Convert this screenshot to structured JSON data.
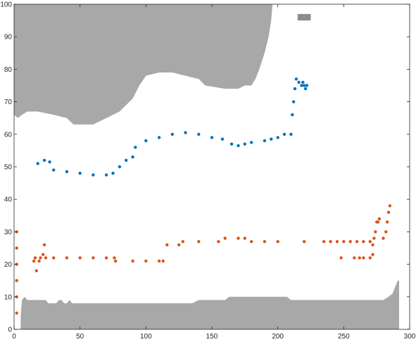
{
  "chart_data": {
    "type": "scatter",
    "title": "",
    "xlabel": "",
    "ylabel": "",
    "xlim": [
      0,
      300
    ],
    "ylim": [
      0,
      100
    ],
    "grid": false,
    "xticks": [
      0,
      50,
      100,
      150,
      200,
      250,
      300
    ],
    "yticks": [
      0,
      10,
      20,
      30,
      40,
      50,
      60,
      70,
      80,
      90,
      100
    ],
    "colors": {
      "background": "#ffffff",
      "obstacle": "#a8a8a8",
      "small_obstacle": "#8c8c8c",
      "series_blue": "#0072BD",
      "series_orange": "#D95319",
      "axis": "#262626"
    },
    "regions": {
      "top_obstacle": [
        [
          0,
          100
        ],
        [
          0,
          66
        ],
        [
          3,
          65
        ],
        [
          6,
          66
        ],
        [
          10,
          67
        ],
        [
          18,
          67
        ],
        [
          30,
          66
        ],
        [
          40,
          65
        ],
        [
          45,
          63
        ],
        [
          60,
          63
        ],
        [
          70,
          65
        ],
        [
          80,
          67
        ],
        [
          85,
          69
        ],
        [
          90,
          71
        ],
        [
          95,
          75
        ],
        [
          100,
          78
        ],
        [
          110,
          79
        ],
        [
          120,
          79
        ],
        [
          130,
          78
        ],
        [
          140,
          77
        ],
        [
          145,
          75
        ],
        [
          160,
          74
        ],
        [
          170,
          74
        ],
        [
          175,
          75
        ],
        [
          180,
          75
        ],
        [
          183,
          77
        ],
        [
          186,
          80
        ],
        [
          190,
          85
        ],
        [
          193,
          90
        ],
        [
          195,
          95
        ],
        [
          196,
          100
        ]
      ],
      "bottom_obstacle": [
        [
          5,
          0
        ],
        [
          5,
          4
        ],
        [
          6,
          9
        ],
        [
          8,
          10
        ],
        [
          10,
          9
        ],
        [
          24,
          9
        ],
        [
          26,
          8
        ],
        [
          32,
          8
        ],
        [
          34,
          9
        ],
        [
          36,
          9
        ],
        [
          38,
          8
        ],
        [
          40,
          8
        ],
        [
          42,
          9
        ],
        [
          44,
          8
        ],
        [
          135,
          8
        ],
        [
          140,
          9
        ],
        [
          160,
          9
        ],
        [
          163,
          10
        ],
        [
          207,
          10
        ],
        [
          210,
          9
        ],
        [
          280,
          9
        ],
        [
          284,
          10
        ],
        [
          287,
          11
        ],
        [
          289,
          13
        ],
        [
          291,
          15
        ],
        [
          292,
          15
        ],
        [
          292,
          0
        ]
      ],
      "small_obstacle": [
        [
          215,
          97
        ],
        [
          225,
          97
        ],
        [
          225,
          95
        ],
        [
          215,
          95
        ]
      ]
    },
    "series": [
      {
        "color": "#0072BD",
        "points": [
          [
            18,
            51
          ],
          [
            23,
            52
          ],
          [
            27,
            51.5
          ],
          [
            30,
            49
          ],
          [
            40,
            48.5
          ],
          [
            50,
            48
          ],
          [
            60,
            47.5
          ],
          [
            70,
            47.5
          ],
          [
            75,
            48
          ],
          [
            80,
            50
          ],
          [
            85,
            52
          ],
          [
            90,
            53
          ],
          [
            92,
            56
          ],
          [
            100,
            58
          ],
          [
            110,
            59
          ],
          [
            120,
            60
          ],
          [
            130,
            60.5
          ],
          [
            140,
            60
          ],
          [
            150,
            59
          ],
          [
            158,
            58.5
          ],
          [
            165,
            57
          ],
          [
            170,
            56.5
          ],
          [
            175,
            57
          ],
          [
            180,
            57.5
          ],
          [
            190,
            58
          ],
          [
            195,
            58.5
          ],
          [
            200,
            59
          ],
          [
            205,
            60
          ],
          [
            210,
            60
          ],
          [
            211,
            66
          ],
          [
            212,
            70
          ],
          [
            213,
            74
          ],
          [
            214,
            77
          ],
          [
            216,
            76
          ],
          [
            218,
            75
          ],
          [
            219,
            76
          ],
          [
            220,
            75
          ],
          [
            221,
            74
          ],
          [
            222,
            75
          ]
        ]
      },
      {
        "color": "#D95319",
        "points": [
          [
            2,
            5
          ],
          [
            2,
            10
          ],
          [
            2,
            15
          ],
          [
            2,
            20
          ],
          [
            2,
            25
          ],
          [
            2,
            30
          ],
          [
            15,
            21
          ],
          [
            16,
            22
          ],
          [
            17,
            18
          ],
          [
            19,
            21
          ],
          [
            20,
            22
          ],
          [
            22,
            23
          ],
          [
            23,
            26
          ],
          [
            24,
            22
          ],
          [
            30,
            22
          ],
          [
            40,
            22
          ],
          [
            50,
            22
          ],
          [
            60,
            22
          ],
          [
            70,
            22
          ],
          [
            76,
            22
          ],
          [
            77,
            21
          ],
          [
            90,
            21
          ],
          [
            100,
            21
          ],
          [
            110,
            21
          ],
          [
            113,
            21
          ],
          [
            116,
            26
          ],
          [
            125,
            26
          ],
          [
            128,
            27
          ],
          [
            140,
            27
          ],
          [
            155,
            27
          ],
          [
            160,
            28
          ],
          [
            170,
            28
          ],
          [
            175,
            28
          ],
          [
            180,
            27
          ],
          [
            190,
            27
          ],
          [
            200,
            27
          ],
          [
            220,
            27
          ],
          [
            235,
            27
          ],
          [
            240,
            27
          ],
          [
            245,
            27
          ],
          [
            250,
            27
          ],
          [
            255,
            27
          ],
          [
            260,
            27
          ],
          [
            265,
            27
          ],
          [
            270,
            27
          ],
          [
            272,
            26
          ],
          [
            273,
            28
          ],
          [
            274,
            30
          ],
          [
            275,
            33
          ],
          [
            276,
            33
          ],
          [
            277,
            34
          ],
          [
            280,
            28
          ],
          [
            282,
            30
          ],
          [
            283,
            33
          ],
          [
            284,
            36
          ],
          [
            285,
            38
          ],
          [
            248,
            22
          ],
          [
            258,
            22
          ],
          [
            262,
            22
          ],
          [
            265,
            22
          ],
          [
            270,
            22
          ],
          [
            272,
            23
          ]
        ]
      }
    ]
  }
}
